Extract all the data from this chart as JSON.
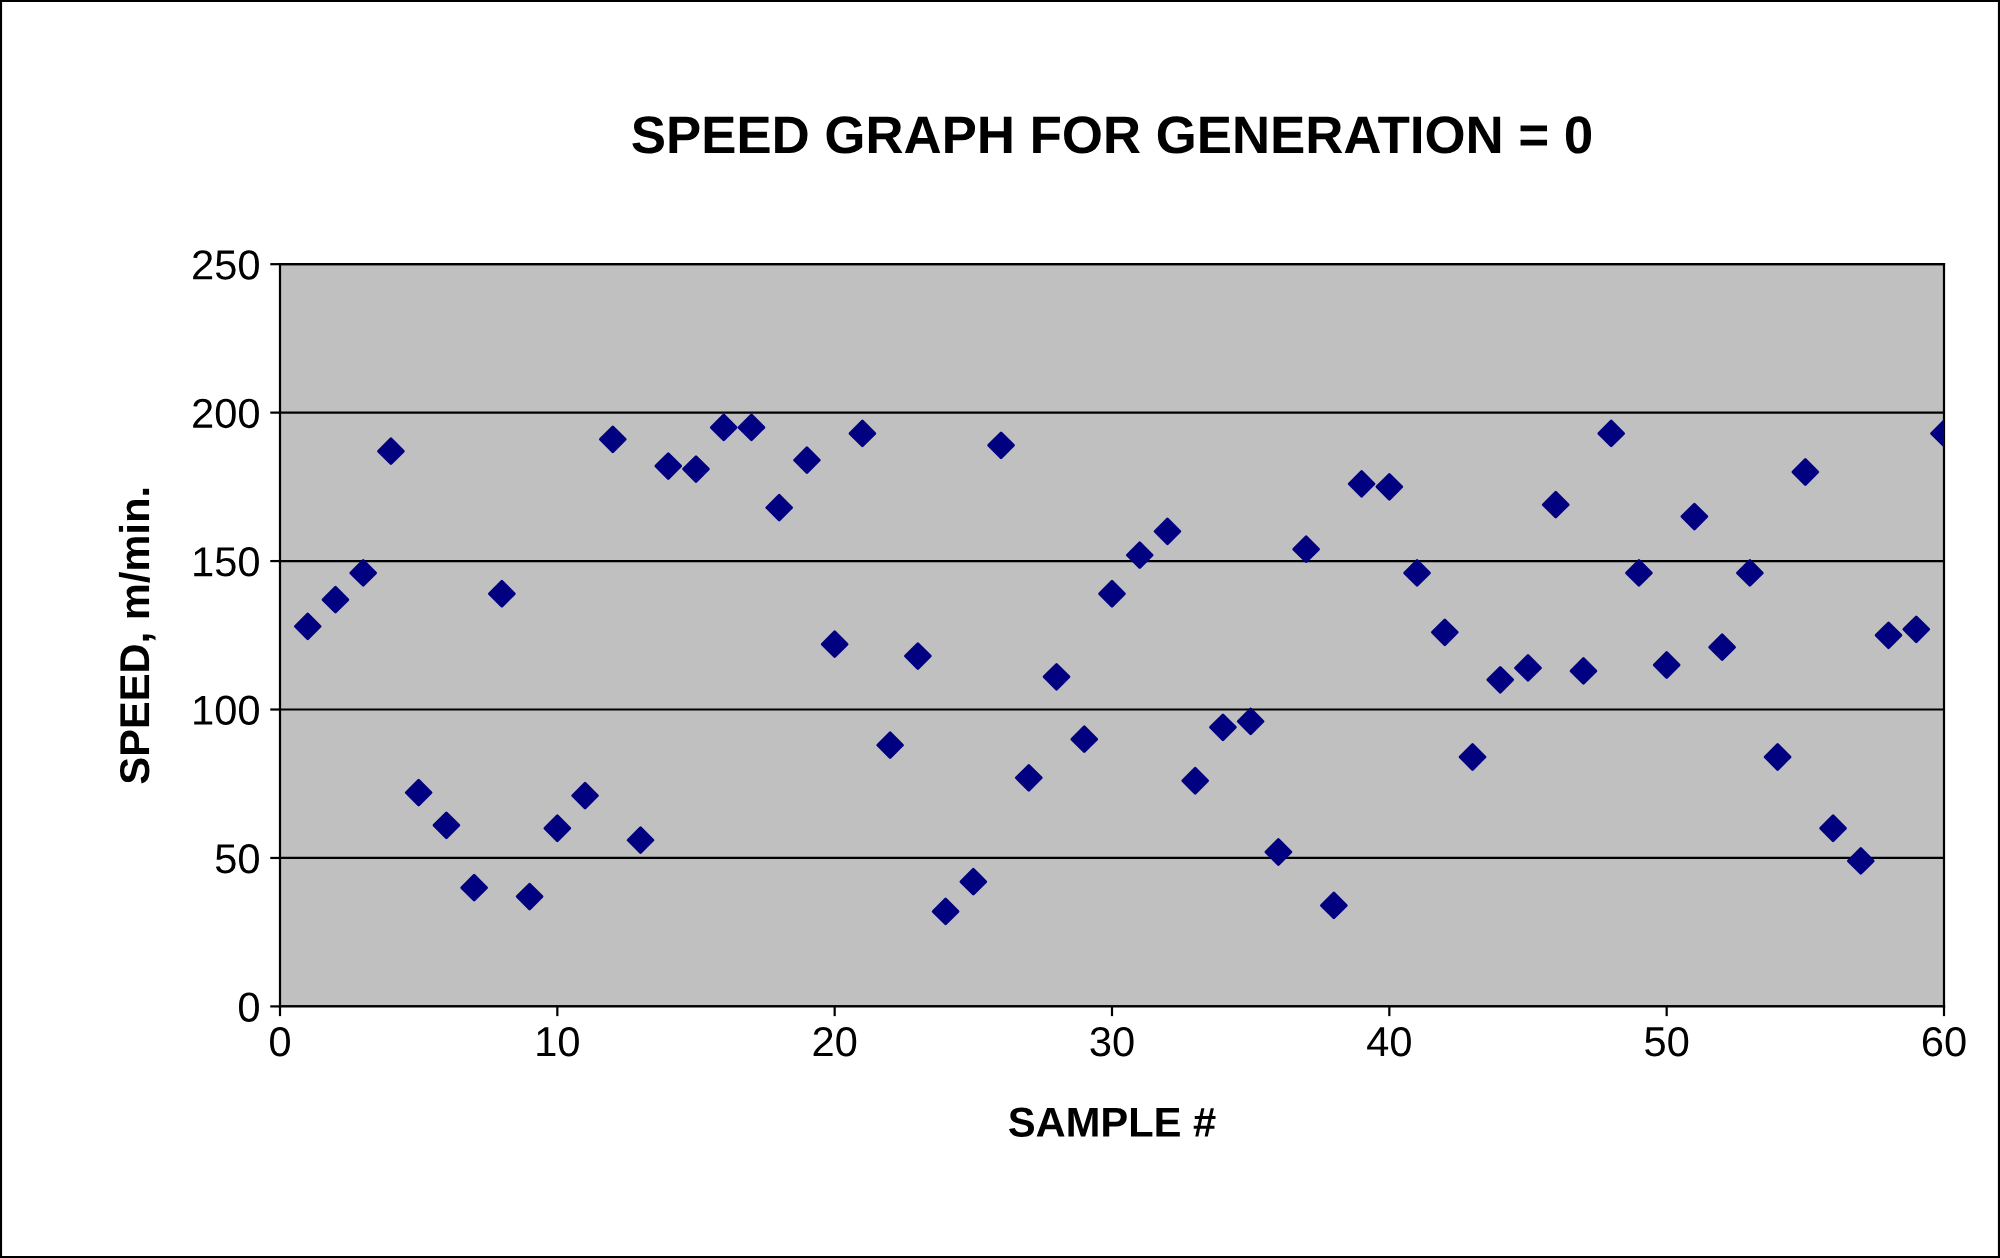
{
  "chart_data": {
    "type": "scatter",
    "title": "SPEED GRAPH FOR GENERATION = 0",
    "xlabel": "SAMPLE #",
    "ylabel": "SPEED, m/min.",
    "x": [
      1,
      2,
      3,
      4,
      5,
      6,
      7,
      8,
      9,
      10,
      11,
      12,
      13,
      14,
      15,
      16,
      17,
      18,
      19,
      20,
      21,
      22,
      23,
      24,
      25,
      26,
      27,
      28,
      29,
      30,
      31,
      32,
      33,
      34,
      35,
      36,
      37,
      38,
      39,
      40,
      41,
      42,
      43,
      44,
      45,
      46,
      47,
      48,
      49,
      50,
      51,
      52,
      53,
      54,
      55,
      56,
      57,
      58,
      59,
      60
    ],
    "series": [
      {
        "color": "#000080",
        "values": [
          128,
          137,
          146,
          187,
          72,
          61,
          40,
          139,
          37,
          60,
          71,
          191,
          56,
          182,
          181,
          195,
          195,
          168,
          184,
          122,
          193,
          88,
          118,
          32,
          42,
          189,
          77,
          111,
          90,
          139,
          152,
          160,
          76,
          94,
          96,
          52,
          154,
          34,
          176,
          175,
          146,
          126,
          84,
          110,
          114,
          169,
          113,
          193,
          146,
          115,
          165,
          121,
          146,
          84,
          180,
          60,
          49,
          125,
          127,
          193
        ]
      }
    ],
    "xlim": [
      0,
      60
    ],
    "xticks": [
      0,
      10,
      20,
      30,
      40,
      50,
      60
    ],
    "ylim": [
      0,
      250
    ],
    "yticks": [
      0,
      50,
      100,
      150,
      200,
      250
    ],
    "grid": "y",
    "marker": "diamond"
  }
}
